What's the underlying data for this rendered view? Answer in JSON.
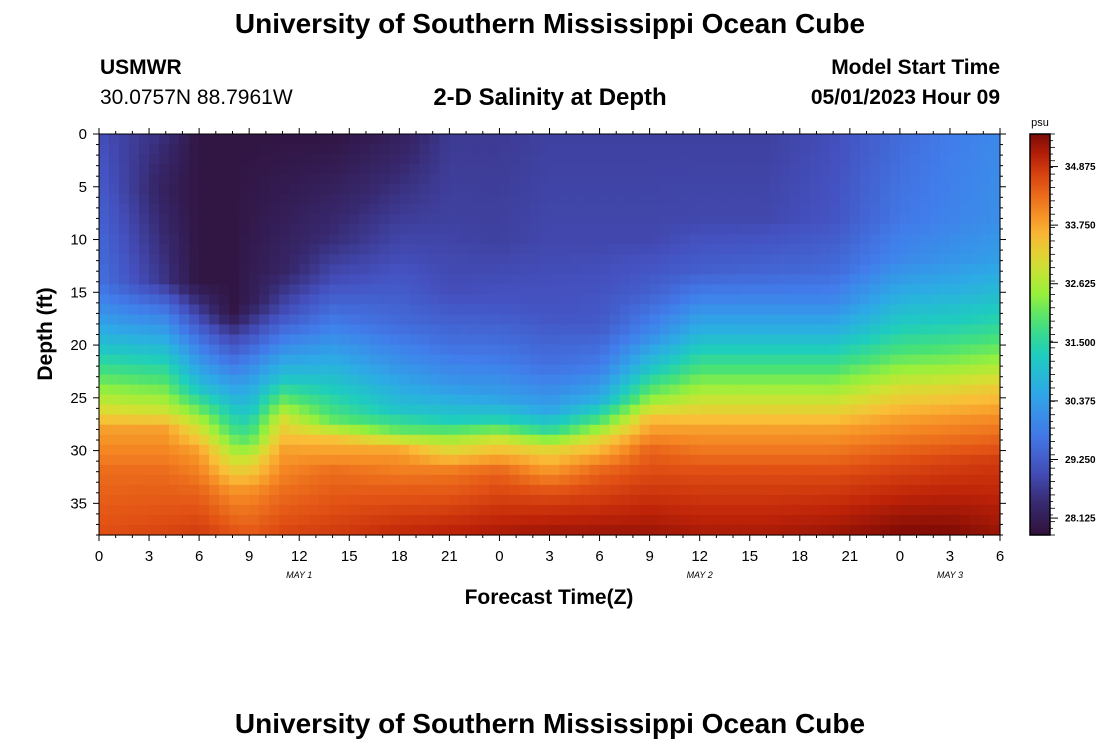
{
  "header": {
    "title": "University of Southern Mississippi Ocean Cube",
    "station": "USMWR",
    "location": "30.0757N  88.7961W",
    "product": "2-D Salinity at Depth",
    "model_start_label": "Model Start Time",
    "model_start_value": "05/01/2023 Hour 09"
  },
  "footer": {
    "title": "University of Southern Mississippi Ocean Cube"
  },
  "colorbar": {
    "unit": "psu",
    "ticks": [
      "34.875",
      "33.750",
      "32.625",
      "31.500",
      "30.375",
      "29.250",
      "28.125"
    ]
  },
  "chart_data": {
    "type": "heatmap",
    "xlabel": "Forecast Time(Z)",
    "ylabel": "Depth (ft)",
    "x_tick_labels": [
      "0",
      "3",
      "6",
      "9",
      "12",
      "15",
      "18",
      "21",
      "0",
      "3",
      "6",
      "9",
      "12",
      "15",
      "18",
      "21",
      "0",
      "3",
      "6"
    ],
    "x_range_hours": [
      0,
      54
    ],
    "date_labels": [
      {
        "text": "MAY 1",
        "hour": 12
      },
      {
        "text": "MAY 2",
        "hour": 36
      },
      {
        "text": "MAY 3",
        "hour": 51
      }
    ],
    "y_tick_labels": [
      "0",
      "5",
      "10",
      "15",
      "20",
      "25",
      "30",
      "35"
    ],
    "y_range": [
      0,
      38
    ],
    "value_range": [
      27.8,
      35.5
    ],
    "profiles": [
      {
        "hour": 0,
        "depth": [
          0,
          14,
          17,
          20,
          23,
          26,
          28,
          32,
          38
        ],
        "value": [
          29.0,
          29.6,
          30.2,
          31.0,
          32.0,
          33.0,
          33.8,
          34.3,
          34.6
        ]
      },
      {
        "hour": 4,
        "depth": [
          0,
          5,
          14,
          17,
          20,
          23,
          26,
          28,
          32,
          38
        ],
        "value": [
          28.5,
          28.2,
          28.6,
          29.8,
          30.8,
          31.8,
          32.8,
          33.8,
          34.3,
          34.7
        ]
      },
      {
        "hour": 6,
        "depth": [
          0,
          14,
          17,
          20,
          24,
          27,
          30,
          34,
          38
        ],
        "value": [
          27.9,
          27.9,
          28.8,
          29.8,
          31.0,
          32.6,
          33.8,
          34.4,
          34.8
        ]
      },
      {
        "hour": 8,
        "depth": [
          0,
          17,
          19,
          22,
          25,
          28,
          31,
          34,
          38
        ],
        "value": [
          27.9,
          27.9,
          28.8,
          29.8,
          30.8,
          31.8,
          33.0,
          34.0,
          34.6
        ]
      },
      {
        "hour": 9,
        "depth": [
          0,
          16,
          19,
          22,
          26,
          29,
          31,
          34,
          38
        ],
        "value": [
          27.9,
          28.1,
          29.0,
          30.0,
          31.0,
          32.0,
          33.0,
          34.0,
          34.5
        ]
      },
      {
        "hour": 11,
        "depth": [
          0,
          13,
          17,
          20,
          23,
          25,
          27,
          30,
          34,
          38
        ],
        "value": [
          27.9,
          28.3,
          29.0,
          30.0,
          31.0,
          32.0,
          33.0,
          33.8,
          34.3,
          34.7
        ]
      },
      {
        "hour": 14,
        "depth": [
          0,
          10,
          14,
          18,
          21,
          24,
          27,
          29,
          32,
          38
        ],
        "value": [
          27.9,
          28.5,
          29.0,
          29.8,
          30.5,
          31.2,
          32.0,
          33.5,
          34.3,
          34.8
        ]
      },
      {
        "hour": 18,
        "depth": [
          0,
          6,
          12,
          18,
          22,
          26,
          28,
          30,
          34,
          38
        ],
        "value": [
          28.2,
          28.6,
          29.0,
          29.5,
          30.2,
          31.0,
          32.0,
          33.8,
          34.5,
          35.0
        ]
      },
      {
        "hour": 21,
        "depth": [
          0,
          8,
          15,
          20,
          24,
          27,
          29,
          32,
          38
        ],
        "value": [
          28.7,
          28.8,
          29.0,
          29.6,
          30.3,
          31.2,
          32.6,
          34.2,
          35.1
        ]
      },
      {
        "hour": 24,
        "depth": [
          0,
          10,
          16,
          21,
          25,
          27,
          29,
          32,
          38
        ],
        "value": [
          28.7,
          28.8,
          29.1,
          29.7,
          30.4,
          31.3,
          33.0,
          34.4,
          35.2
        ]
      },
      {
        "hour": 27,
        "depth": [
          0,
          10,
          17,
          22,
          26,
          28,
          30,
          34,
          38
        ],
        "value": [
          28.8,
          28.9,
          29.1,
          29.6,
          30.4,
          31.5,
          33.2,
          34.6,
          35.3
        ]
      },
      {
        "hour": 30,
        "depth": [
          0,
          10,
          18,
          22,
          25,
          27,
          29,
          32,
          38
        ],
        "value": [
          28.8,
          28.9,
          29.2,
          29.8,
          30.6,
          31.8,
          33.2,
          34.4,
          35.3
        ]
      },
      {
        "hour": 33,
        "depth": [
          0,
          10,
          15,
          19,
          22,
          25,
          27,
          30,
          38
        ],
        "value": [
          28.8,
          28.9,
          29.3,
          30.0,
          31.0,
          32.3,
          33.5,
          34.4,
          35.3
        ]
      },
      {
        "hour": 36,
        "depth": [
          0,
          8,
          13,
          16,
          19,
          22,
          25,
          28,
          32,
          38
        ],
        "value": [
          28.8,
          28.9,
          29.3,
          30.0,
          30.8,
          31.8,
          32.8,
          33.8,
          34.6,
          35.2
        ]
      },
      {
        "hour": 40,
        "depth": [
          0,
          8,
          13,
          16,
          19,
          22,
          25,
          28,
          32,
          38
        ],
        "value": [
          28.8,
          28.9,
          29.4,
          30.0,
          30.8,
          31.8,
          32.8,
          33.8,
          34.6,
          35.2
        ]
      },
      {
        "hour": 44,
        "depth": [
          0,
          8,
          13,
          16,
          19,
          22,
          25,
          28,
          32,
          38
        ],
        "value": [
          29.0,
          29.1,
          29.5,
          30.0,
          30.8,
          31.8,
          32.8,
          33.8,
          34.6,
          35.3
        ]
      },
      {
        "hour": 48,
        "depth": [
          0,
          8,
          12,
          15,
          18,
          21,
          24,
          27,
          31,
          38
        ],
        "value": [
          29.5,
          29.7,
          30.0,
          30.6,
          31.2,
          32.0,
          33.0,
          33.8,
          34.6,
          35.5
        ]
      },
      {
        "hour": 51,
        "depth": [
          0,
          8,
          12,
          15,
          18,
          21,
          24,
          27,
          31,
          38
        ],
        "value": [
          29.8,
          29.9,
          30.2,
          30.7,
          31.3,
          32.1,
          33.1,
          33.9,
          34.7,
          35.5
        ]
      },
      {
        "hour": 54,
        "depth": [
          0,
          8,
          12,
          15,
          18,
          21,
          24,
          27,
          31,
          38
        ],
        "value": [
          30.0,
          30.1,
          30.4,
          30.9,
          31.5,
          32.3,
          33.3,
          34.0,
          34.8,
          35.3
        ]
      }
    ]
  }
}
